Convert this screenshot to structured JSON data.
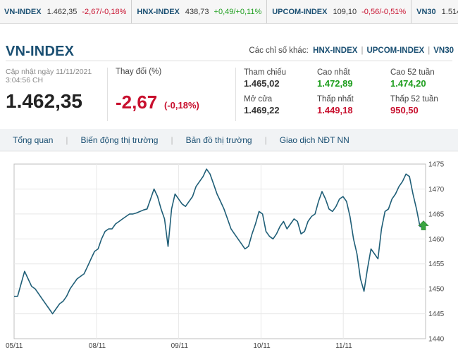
{
  "ticker": [
    {
      "name": "VN-INDEX",
      "value": "1.462,35",
      "change": "-2,67/-0,18%",
      "dir": "down"
    },
    {
      "name": "HNX-INDEX",
      "value": "438,73",
      "change": "+0,49/+0,11%",
      "dir": "up"
    },
    {
      "name": "UPCOM-INDEX",
      "value": "109,10",
      "change": "-0,56/-0,51%",
      "dir": "down"
    },
    {
      "name": "VN30",
      "value": "1.514",
      "change": "",
      "dir": "down"
    }
  ],
  "header": {
    "title": "VN-INDEX",
    "other_label": "Các chỉ số khác:",
    "other_links": [
      "HNX-INDEX",
      "UPCOM-INDEX",
      "VN30"
    ]
  },
  "summary": {
    "updated_line1": "Cập nhật ngày 11/11/2021",
    "updated_line2": "3:04:56 CH",
    "value": "1.462,35",
    "change_label": "Thay đổi (%)",
    "change": "-2,67",
    "change_pct": "(-0,18%)"
  },
  "stats": {
    "ref_label": "Tham chiếu",
    "ref_value": "1.465,02",
    "high_label": "Cao nhất",
    "high_value": "1.472,89",
    "high52_label": "Cao 52 tuần",
    "high52_value": "1.474,20",
    "open_label": "Mở cửa",
    "open_value": "1.469,22",
    "low_label": "Thấp nhất",
    "low_value": "1.449,18",
    "low52_label": "Thấp 52 tuần",
    "low52_value": "950,50"
  },
  "tabs": [
    "Tổng quan",
    "Biến động thị trường",
    "Bản đồ thị trường",
    "Giao dịch NĐT NN"
  ],
  "colors": {
    "line": "#1f5e77",
    "down": "#c8102e",
    "up": "#1e9e1e",
    "marker": "#3aa640"
  },
  "icons": {
    "marker": "up-arrow-icon"
  },
  "chart_data": {
    "type": "line",
    "x_ticks": [
      "05/11",
      "08/11",
      "09/11",
      "10/11",
      "11/11"
    ],
    "y_ticks": [
      1440,
      1445,
      1450,
      1455,
      1460,
      1465,
      1470,
      1475
    ],
    "ylim": [
      1440,
      1475
    ],
    "grid": true,
    "series": [
      {
        "values": [
          1448.5,
          1448.5,
          1451,
          1453.5,
          1452,
          1450.5,
          1450,
          1449,
          1448,
          1447,
          1446,
          1445,
          1446,
          1447,
          1447.5,
          1448.5,
          1450,
          1451,
          1452,
          1452.5,
          1453,
          1454.5,
          1456,
          1457.5,
          1458,
          1460,
          1461.5,
          1462,
          1462,
          1463,
          1463.5,
          1464,
          1464.5,
          1465,
          1465,
          1465.2,
          1465.5,
          1465.8,
          1466,
          1468,
          1470,
          1468.5,
          1466,
          1464,
          1458.5,
          1466,
          1469,
          1468,
          1467,
          1466.5,
          1467.5,
          1468.5,
          1470.5,
          1471.5,
          1472.5,
          1474,
          1473,
          1471,
          1469,
          1467.5,
          1466,
          1464,
          1462,
          1461,
          1460,
          1459,
          1458,
          1458.5,
          1461,
          1463,
          1465.5,
          1465,
          1461.5,
          1460.5,
          1460,
          1461,
          1462.5,
          1463.5,
          1462,
          1463,
          1464,
          1463.5,
          1461,
          1461.5,
          1463.5,
          1464.5,
          1465,
          1467.5,
          1469.5,
          1468,
          1466,
          1465.5,
          1466.5,
          1468,
          1468.5,
          1467.5,
          1464.5,
          1460,
          1457,
          1452,
          1449.5,
          1454,
          1458,
          1457,
          1456,
          1462,
          1465.5,
          1466,
          1468,
          1469,
          1470.5,
          1471.5,
          1473,
          1472.5,
          1469,
          1466,
          1462.5,
          1462.35
        ]
      }
    ],
    "last_value": 1462.35
  }
}
